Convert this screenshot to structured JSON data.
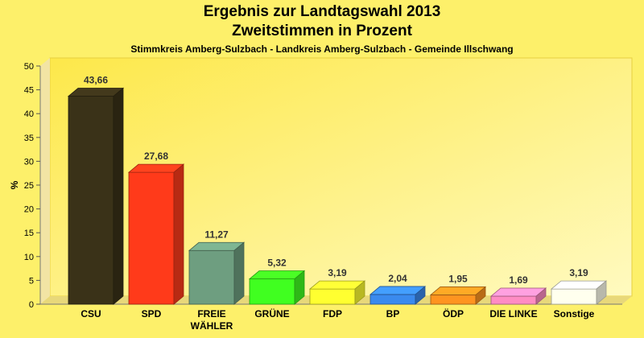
{
  "chart_data": {
    "type": "bar",
    "title": "Ergebnis zur Landtagswahl 2013",
    "subtitle": "Zweitstimmen in Prozent",
    "caption": "Stimmkreis Amberg-Sulzbach - Landkreis Amberg-Sulzbach - Gemeinde Illschwang",
    "ylabel": "%",
    "xlabel": "",
    "ylim": [
      0,
      50
    ],
    "yticks": [
      0,
      5,
      10,
      15,
      20,
      25,
      30,
      35,
      40,
      45,
      50
    ],
    "grid": false,
    "categories": [
      [
        "CSU"
      ],
      [
        "SPD"
      ],
      [
        "FREIE",
        "WÄHLER"
      ],
      [
        "GRÜNE"
      ],
      [
        "FDP"
      ],
      [
        "BP"
      ],
      [
        "ÖDP"
      ],
      [
        "DIE LINKE"
      ],
      [
        "Sonstige"
      ]
    ],
    "values": [
      43.66,
      27.68,
      11.27,
      5.32,
      3.19,
      2.04,
      1.95,
      1.69,
      3.19
    ],
    "value_labels": [
      "43,66",
      "27,68",
      "11,27",
      "5,32",
      "3,19",
      "2,04",
      "1,95",
      "1,69",
      "3,19"
    ],
    "colors": [
      "#3a3218",
      "#ff3a1a",
      "#6e9e80",
      "#40ff20",
      "#ffff30",
      "#3a8aee",
      "#ff9420",
      "#ff8cc4",
      "#ffffee"
    ]
  }
}
